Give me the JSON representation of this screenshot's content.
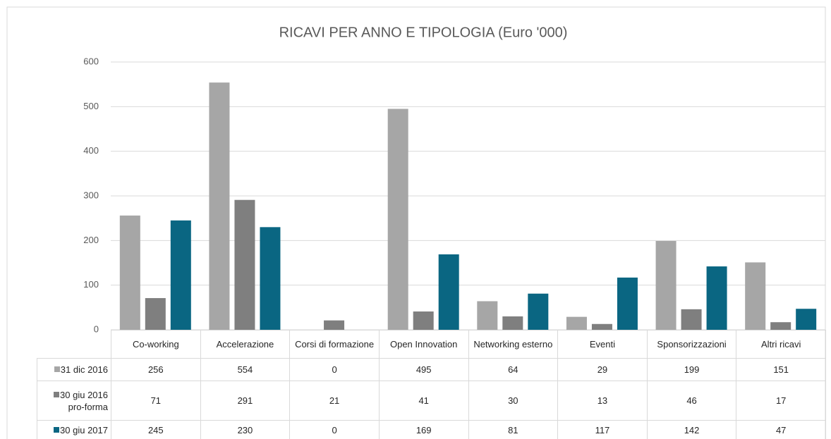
{
  "chart_data": {
    "type": "bar",
    "title": "RICAVI PER ANNO E TIPOLOGIA (Euro '000)",
    "categories": [
      "Co-working",
      "Accelerazione",
      "Corsi di formazione",
      "Open Innovation",
      "Networking esterno",
      "Eventi",
      "Sponsorizzazioni",
      "Altri ricavi"
    ],
    "series": [
      {
        "name": "31 dic 2016",
        "color": "#a6a6a6",
        "values": [
          256,
          554,
          0,
          495,
          64,
          29,
          199,
          151
        ]
      },
      {
        "name": "30 giu 2016 pro-forma",
        "color": "#7f7f7f",
        "values": [
          71,
          291,
          21,
          41,
          30,
          13,
          46,
          17
        ]
      },
      {
        "name": "30 giu 2017",
        "color": "#0a6682",
        "values": [
          245,
          230,
          0,
          169,
          81,
          117,
          142,
          47
        ]
      }
    ],
    "ylim": [
      0,
      600
    ],
    "yticks": [
      0,
      100,
      200,
      300,
      400,
      500,
      600
    ],
    "grid": true,
    "data_table": true
  }
}
